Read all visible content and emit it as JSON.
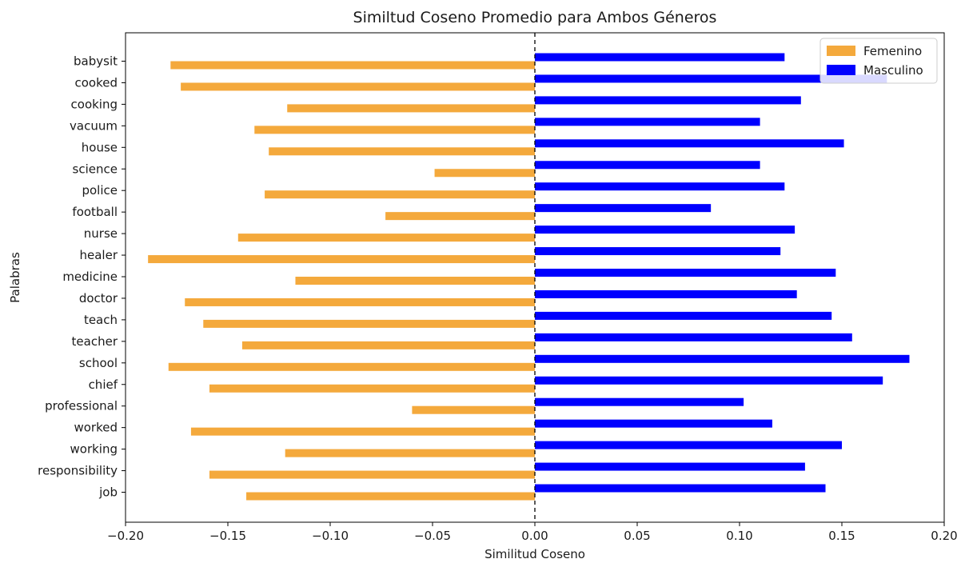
{
  "chart_data": {
    "type": "bar",
    "orientation": "horizontal",
    "title": "Similtud Coseno Promedio para Ambos Géneros",
    "xlabel": "Similitud Coseno",
    "ylabel": "Palabras",
    "xlim": [
      -0.2,
      0.2
    ],
    "xticks": [
      -0.2,
      -0.15,
      -0.1,
      -0.05,
      0.0,
      0.05,
      0.1,
      0.15,
      0.2
    ],
    "xtick_labels": [
      "−0.20",
      "−0.15",
      "−0.10",
      "−0.05",
      "0.00",
      "0.05",
      "0.10",
      "0.15",
      "0.20"
    ],
    "reference_line": {
      "x": 0,
      "style": "dashed",
      "color": "#000000"
    },
    "grid": false,
    "legend_position": "top-right",
    "categories": [
      "babysit",
      "cooked",
      "cooking",
      "vacuum",
      "house",
      "science",
      "police",
      "football",
      "nurse",
      "healer",
      "medicine",
      "doctor",
      "teach",
      "teacher",
      "school",
      "chief",
      "professional",
      "worked",
      "working",
      "responsibility",
      "job"
    ],
    "series": [
      {
        "name": "Femenino",
        "color": "#f4a93c",
        "values": [
          -0.178,
          -0.173,
          -0.121,
          -0.137,
          -0.13,
          -0.049,
          -0.132,
          -0.073,
          -0.145,
          -0.189,
          -0.117,
          -0.171,
          -0.162,
          -0.143,
          -0.179,
          -0.159,
          -0.06,
          -0.168,
          -0.122,
          -0.159,
          -0.141
        ]
      },
      {
        "name": "Masculino",
        "color": "#0000ff",
        "values": [
          0.122,
          0.172,
          0.13,
          0.11,
          0.151,
          0.11,
          0.122,
          0.086,
          0.127,
          0.12,
          0.147,
          0.128,
          0.145,
          0.155,
          0.183,
          0.17,
          0.102,
          0.116,
          0.15,
          0.132,
          0.142
        ]
      }
    ]
  }
}
